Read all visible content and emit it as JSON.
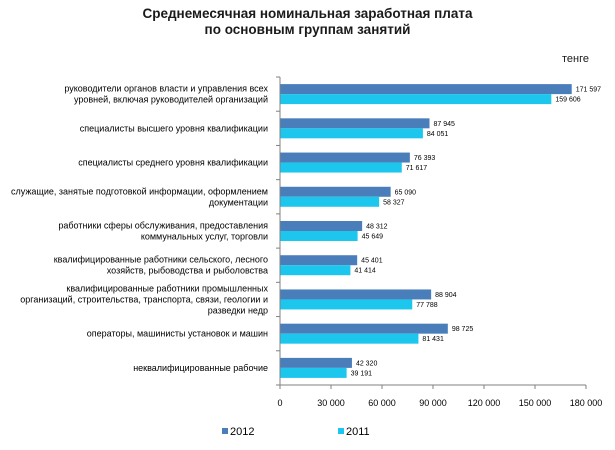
{
  "chart_data": {
    "type": "bar",
    "orientation": "horizontal",
    "title": "Среднемесячная номинальная заработная плата по основным группам занятий",
    "title_lines": [
      "Среднемесячная номинальная заработная плата",
      "по основным группам занятий"
    ],
    "unit_label": "тенге",
    "categories": [
      [
        "руководители органов власти и управления всех",
        "уровней, включая руководителей организаций"
      ],
      [
        "специалисты высшего уровня квалификации"
      ],
      [
        "специалисты среднего уровня квалификации"
      ],
      [
        "служащие, занятые подготовкой информации, оформлением",
        "документации"
      ],
      [
        "работники сферы обслуживания, предоставления",
        "коммунальных услуг, торговли"
      ],
      [
        "квалифицированные работники сельского, лесного",
        "хозяйств, рыбоводства и рыболовства"
      ],
      [
        "квалифицированные работники промышленных",
        "организаций, строительства, транспорта, связи, геологии и",
        "разведки недр"
      ],
      [
        "операторы, машинисты установок и машин"
      ],
      [
        "неквалифицированные рабочие"
      ]
    ],
    "series": [
      {
        "name": "2012",
        "color": "#4a7ebb",
        "values": [
          171597,
          87945,
          76393,
          65090,
          48312,
          45401,
          88904,
          98725,
          42320
        ],
        "labels": [
          "171 597",
          "87 945",
          "76 393",
          "65 090",
          "48 312",
          "45 401",
          "88 904",
          "98 725",
          "42 320"
        ]
      },
      {
        "name": "2011",
        "color": "#1cc6ec",
        "values": [
          159606,
          84051,
          71617,
          58327,
          45649,
          41414,
          77788,
          81431,
          39191
        ],
        "labels": [
          "159 606",
          "84 051",
          "71 617",
          "58 327",
          "45 649",
          "41 414",
          "77 788",
          "81 431",
          "39 191"
        ]
      }
    ],
    "xlim": [
      0,
      180000
    ],
    "xticks": [
      0,
      30000,
      60000,
      90000,
      120000,
      150000,
      180000
    ],
    "xtick_labels": [
      "0",
      "30 000",
      "60 000",
      "90 000",
      "120 000",
      "150 000",
      "180 000"
    ],
    "legend": "bottom",
    "grid": false
  }
}
